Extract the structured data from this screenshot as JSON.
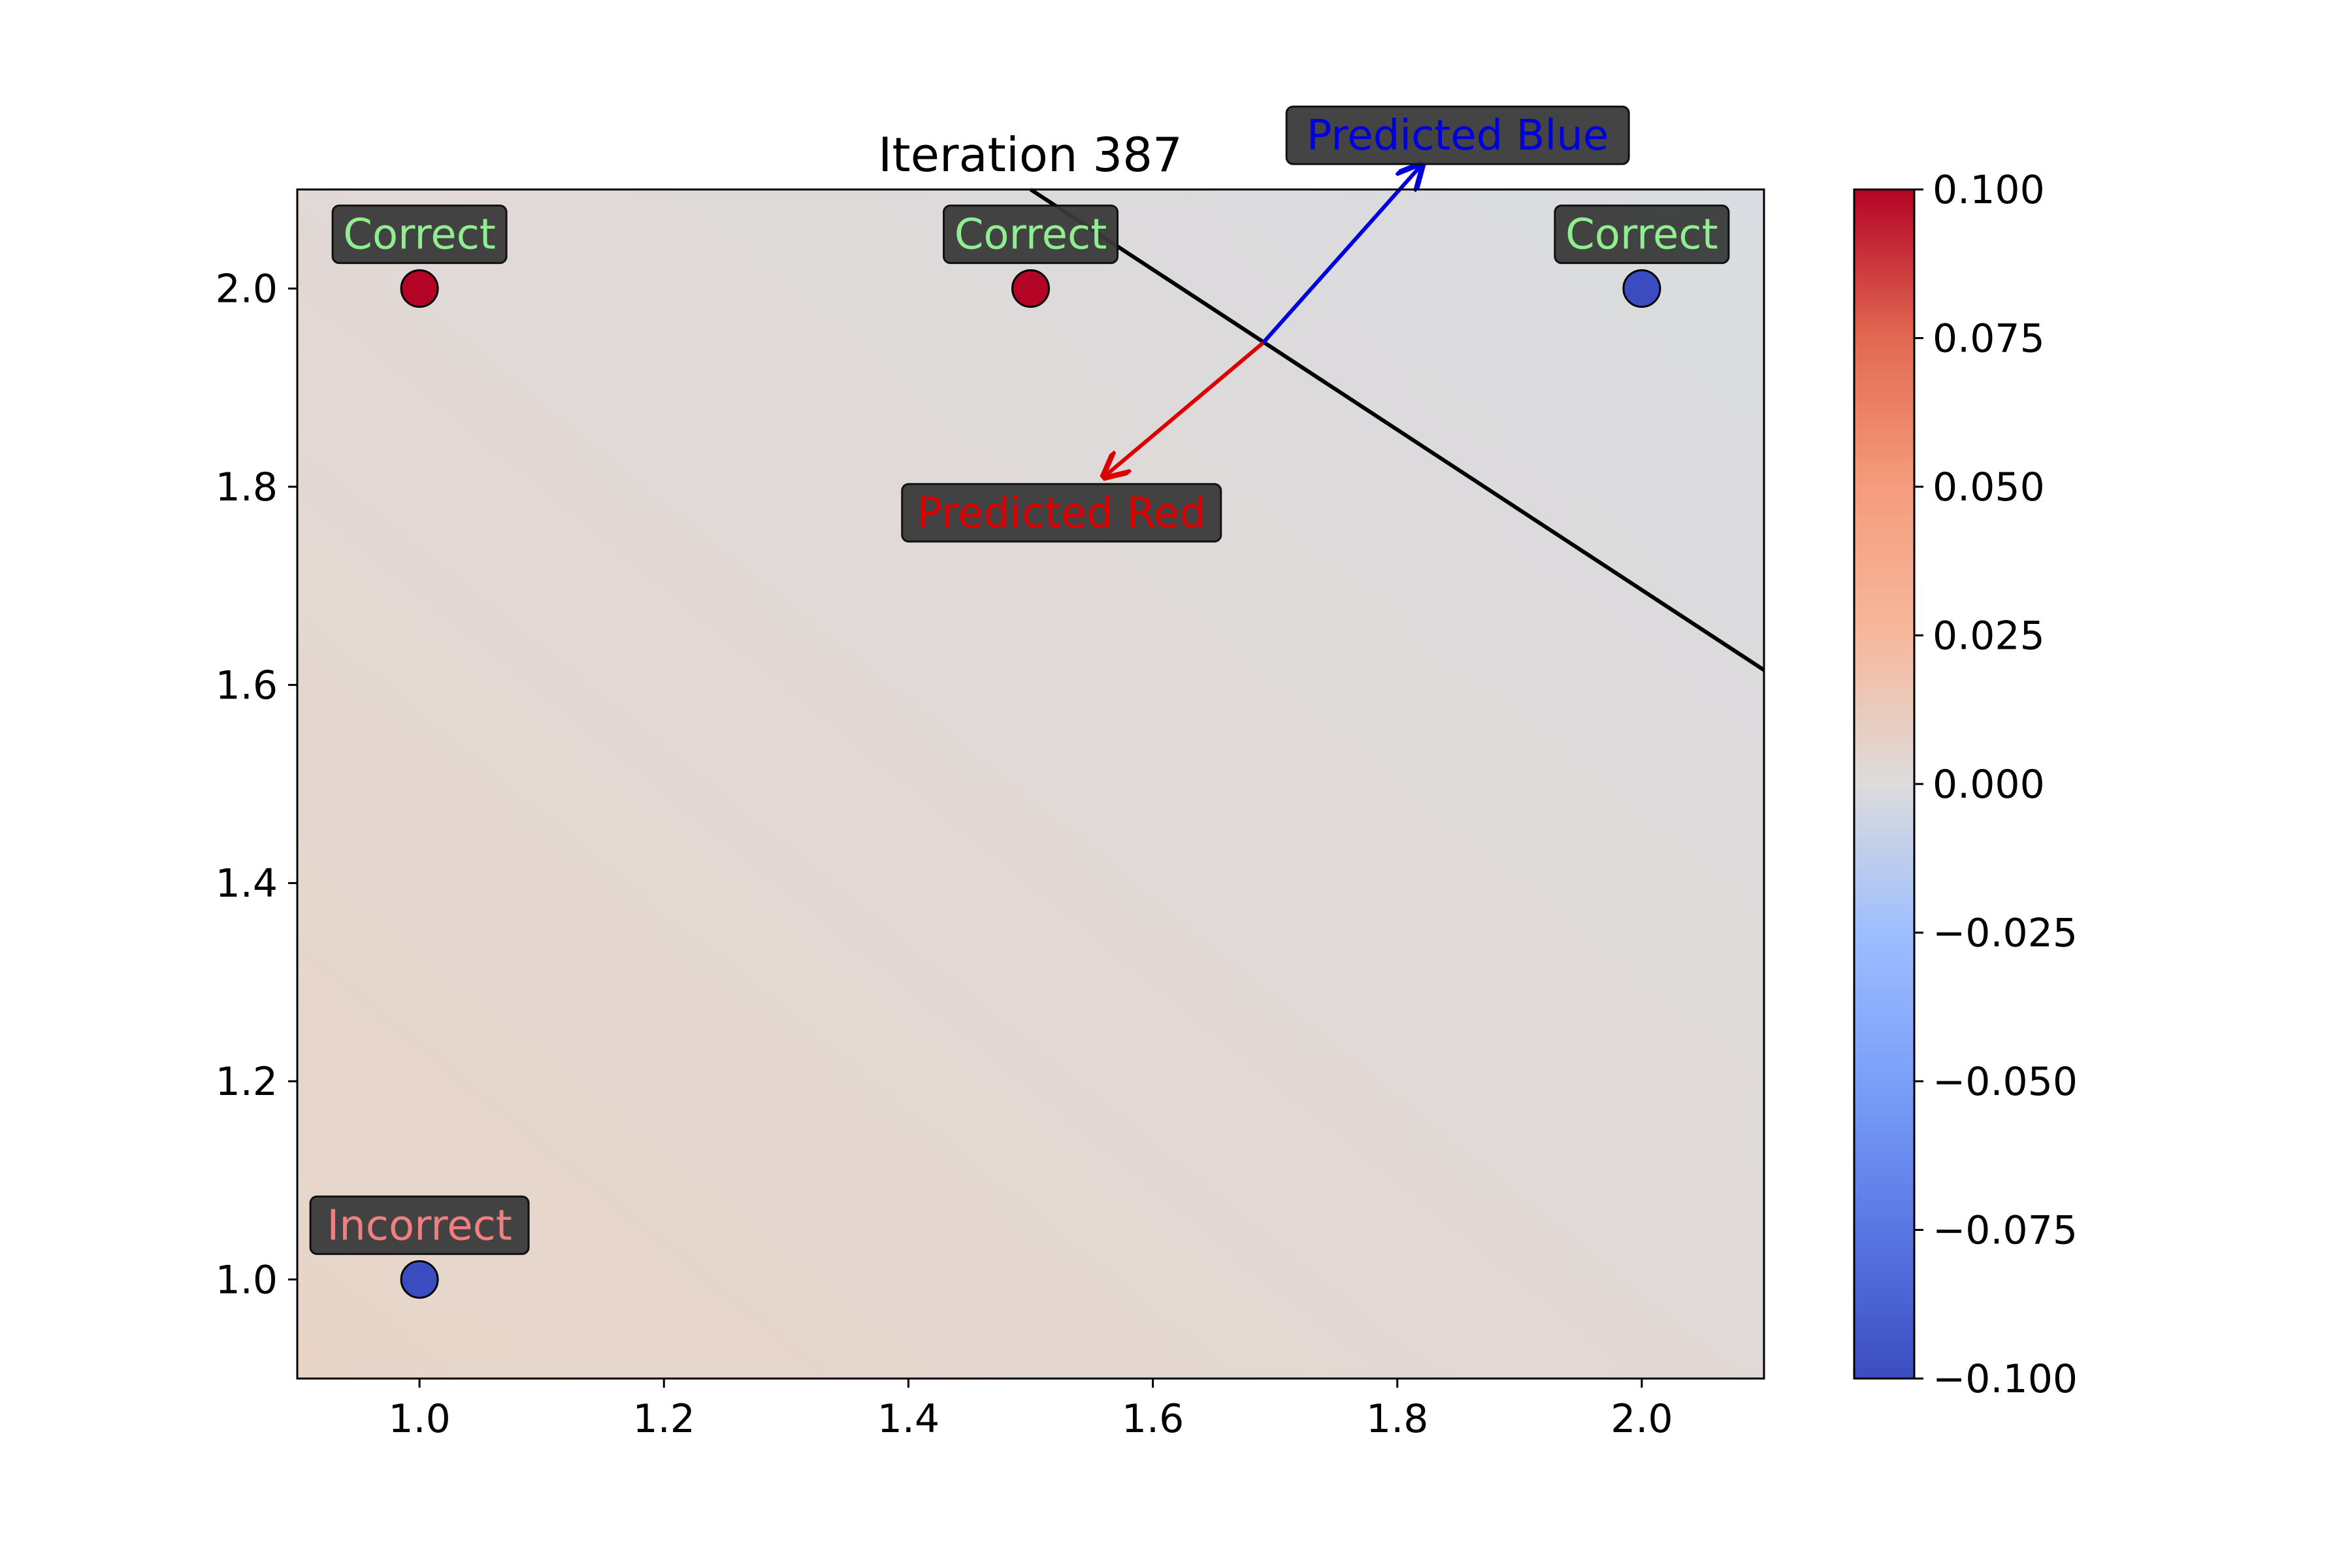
{
  "chart_data": {
    "type": "scatter",
    "title": "Iteration 387",
    "xlabel": "",
    "ylabel": "",
    "xlim": [
      0.9,
      2.1
    ],
    "ylim": [
      0.9,
      2.1
    ],
    "x_ticks": [
      "1.0",
      "1.2",
      "1.4",
      "1.6",
      "1.8",
      "2.0"
    ],
    "y_ticks": [
      "1.0",
      "1.2",
      "1.4",
      "1.6",
      "1.8",
      "2.0"
    ],
    "grid": false,
    "points": [
      {
        "x": 1.0,
        "y": 2.0,
        "class": "red",
        "label": "Correct"
      },
      {
        "x": 1.5,
        "y": 2.0,
        "class": "red",
        "label": "Correct"
      },
      {
        "x": 2.0,
        "y": 2.0,
        "class": "blue",
        "label": "Correct"
      },
      {
        "x": 1.0,
        "y": 1.0,
        "class": "blue",
        "label": "Incorrect"
      }
    ],
    "decision_boundary": [
      [
        1.5,
        2.1
      ],
      [
        2.1,
        1.615
      ]
    ],
    "normal_arrows": [
      {
        "from": [
          1.69,
          1.945
        ],
        "to": [
          1.82,
          2.125
        ],
        "label": "Predicted Blue",
        "color": "#0000dd"
      },
      {
        "from": [
          1.69,
          1.945
        ],
        "to": [
          1.56,
          1.81
        ],
        "label": "Predicted Red",
        "color": "#dd0000"
      }
    ],
    "colorbar": {
      "colormap": "coolwarm",
      "range": [
        -0.1,
        0.1
      ],
      "ticks": [
        "0.100",
        "0.075",
        "0.050",
        "0.025",
        "0.000",
        "−0.025",
        "−0.050",
        "−0.075",
        "−0.100"
      ]
    },
    "colors": {
      "red_point": "#b40426",
      "blue_point": "#3b4cc0",
      "correct_text": "#90ee90",
      "incorrect_text": "#f08080",
      "label_box": "#3a3a3a"
    }
  }
}
